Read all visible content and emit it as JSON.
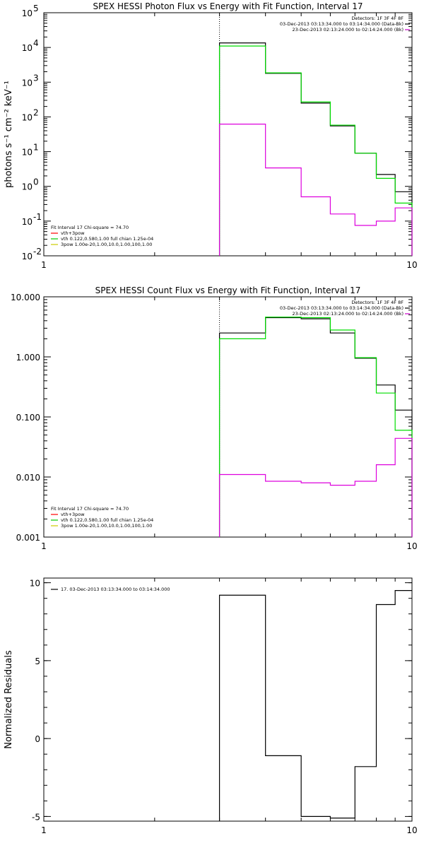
{
  "chart_data": [
    {
      "type": "line",
      "title": "SPEX HESSI Photon Flux vs Energy with Fit Function, Interval 17",
      "ylabel": "photons s⁻¹ cm⁻² keV⁻¹",
      "xlabel": "",
      "x_scale": "log",
      "y_scale": "log",
      "xlim": [
        1,
        10
      ],
      "ylim": [
        0.01,
        100000
      ],
      "x_ticks": [
        1,
        10
      ],
      "x_tick_labels": [
        "1",
        "10"
      ],
      "y_ticks": [
        0.01,
        0.1,
        1,
        10,
        100,
        1000,
        10000,
        100000
      ],
      "y_tick_labels": [
        "10",
        "10",
        "10",
        "10",
        "10",
        "10",
        "10",
        "10"
      ],
      "y_tick_exponents": [
        "-2",
        "-1",
        "0",
        "1",
        "2",
        "3",
        "4",
        "5"
      ],
      "vline_x": 3,
      "legend_right": {
        "lines": [
          {
            "text": "Detectors: 1F 3F 4F 8F",
            "color": ""
          },
          {
            "text": "03-Dec-2013 03:13:34.000 to 03:14:34.000 (Data-Bk)",
            "color": "#000000"
          },
          {
            "text": "23-Dec-2013 02:13:24.000 to 02:14:24.000 (Bk)",
            "color": "#cc00cc"
          }
        ]
      },
      "legend_left": {
        "lines": [
          {
            "text": "Fit Interval 17    Chi-square = 74.70",
            "color": ""
          },
          {
            "text": "vth+3pow",
            "color": "#ff0000"
          },
          {
            "text": "vth 0.122,0.580,1.00  full chian 1.25e-04",
            "color": "#00cc00"
          },
          {
            "text": "3pow 1.00e-20,1.00,10.0,1.00,100,1.00",
            "color": "#cccc00"
          }
        ]
      },
      "edges": [
        3,
        4,
        5,
        6,
        7,
        8,
        9,
        10
      ],
      "series": [
        {
          "color": "#000000",
          "values": [
            13500,
            1800,
            250,
            55,
            9,
            2.2,
            0.7
          ]
        },
        {
          "color": "#00dd00",
          "values": [
            11000,
            1850,
            270,
            58,
            9,
            1.7,
            0.33
          ]
        },
        {
          "color": "#dd00dd",
          "values": [
            62,
            3.4,
            0.5,
            0.16,
            0.075,
            0.1,
            0.24
          ]
        }
      ]
    },
    {
      "type": "line",
      "title": "SPEX HESSI Count Flux vs Energy with Fit Function, Interval 17",
      "ylabel": "",
      "xlabel": "",
      "x_scale": "log",
      "y_scale": "log",
      "xlim": [
        1,
        10
      ],
      "ylim": [
        0.001,
        10
      ],
      "x_ticks": [
        1,
        10
      ],
      "x_tick_labels": [
        "1",
        "10"
      ],
      "y_ticks": [
        0.001,
        0.01,
        0.1,
        1,
        10
      ],
      "y_tick_labels": [
        "0.001",
        "0.010",
        "0.100",
        "1.000",
        "10.000"
      ],
      "vline_x": 3,
      "legend_right": {
        "lines": [
          {
            "text": "Detectors: 1F 3F 4F 8F",
            "color": ""
          },
          {
            "text": "03-Dec-2013 03:13:34.000 to 03:14:34.000 (Data-Bk)",
            "color": "#000000"
          },
          {
            "text": "23-Dec-2013 02:13:24.000 to 02:14:24.000 (Bk)",
            "color": "#cc00cc"
          }
        ]
      },
      "legend_left": {
        "lines": [
          {
            "text": "Fit Interval 17    Chi-square = 74.70",
            "color": ""
          },
          {
            "text": "vth+3pow",
            "color": "#ff0000"
          },
          {
            "text": "vth 0.122,0.580,1.00  full chian 1.25e-04",
            "color": "#00cc00"
          },
          {
            "text": "3pow 1.00e-20,1.00,10.0,1.00,100,1.00",
            "color": "#cccc00"
          }
        ]
      },
      "edges": [
        3,
        4,
        5,
        6,
        7,
        8,
        9,
        10
      ],
      "series": [
        {
          "color": "#000000",
          "values": [
            2.5,
            4.5,
            4.3,
            2.5,
            0.95,
            0.34,
            0.13
          ]
        },
        {
          "color": "#00dd00",
          "values": [
            2.0,
            4.6,
            4.5,
            2.8,
            0.97,
            0.25,
            0.06
          ]
        },
        {
          "color": "#dd00dd",
          "values": [
            0.011,
            0.0085,
            0.008,
            0.0073,
            0.0085,
            0.016,
            0.044
          ]
        }
      ]
    },
    {
      "type": "line",
      "title": "",
      "ylabel": "Normalized Residuals",
      "xlabel": "",
      "x_scale": "log",
      "y_scale": "linear",
      "xlim": [
        1,
        10
      ],
      "ylim": [
        -5.3,
        10.3
      ],
      "x_ticks": [
        1,
        10
      ],
      "x_tick_labels": [
        "1",
        "10"
      ],
      "y_ticks": [
        -5,
        0,
        5,
        10
      ],
      "y_tick_labels": [
        "-5",
        "0",
        "5",
        "10"
      ],
      "legend_left": {
        "lines": [
          {
            "text": "17. 03-Dec-2013 03:13:34.000 to 03:14:34.000",
            "color": "#000000"
          }
        ]
      },
      "edges": [
        3,
        4,
        5,
        6,
        7,
        8,
        9,
        10
      ],
      "series": [
        {
          "color": "#000000",
          "values": [
            9.2,
            -1.1,
            -5.0,
            -5.1,
            -1.8,
            8.6,
            9.5
          ]
        }
      ]
    }
  ]
}
